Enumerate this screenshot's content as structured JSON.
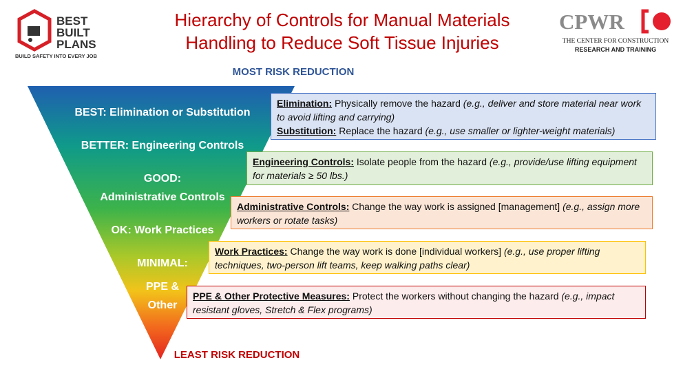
{
  "logo_left": {
    "lines": [
      "BEST",
      "BUILT",
      "PLANS"
    ],
    "tagline": "BUILD SAFETY INTO EVERY JOB"
  },
  "title": [
    "Hierarchy of Controls for Manual Materials",
    "Handling to Reduce Soft Tissue Injuries"
  ],
  "logo_right": {
    "name": "CPWR",
    "line1": "THE CENTER FOR CONSTRUCTION",
    "line2": "RESEARCH AND TRAINING"
  },
  "top_label": "MOST RISK REDUCTION",
  "bottom_label": "LEAST RISK REDUCTION",
  "triangle_labels": [
    "BEST: Elimination or Substitution",
    "BETTER: Engineering Controls",
    "GOOD:",
    "Administrative Controls",
    "OK: Work Practices",
    "MINIMAL:",
    "PPE &",
    "Other"
  ],
  "boxes": [
    [
      {
        "term": "Elimination:",
        "text": "Physically remove the hazard",
        "example": "(e.g., deliver and store material near work to avoid lifting and carrying)"
      },
      {
        "term": "Substitution:",
        "text": "Replace the hazard",
        "example": "(e.g., use smaller or lighter-weight materials)"
      }
    ],
    [
      {
        "term": "Engineering Controls:",
        "text": "Isolate people from the hazard",
        "example": "(e.g., provide/use lifting equipment for materials ≥ 50 lbs.)"
      }
    ],
    [
      {
        "term": "Administrative Controls:",
        "text": "Change the way work is assigned [management]",
        "example": "(e.g., assign more workers or rotate tasks)"
      }
    ],
    [
      {
        "term": "Work Practices:",
        "text": "Change the way work is done [individual workers]",
        "example": "(e.g., use proper lifting techniques, two-person lift teams, keep walking paths clear)"
      }
    ],
    [
      {
        "term": "PPE & Other Protective Measures:",
        "text": "Protect the workers without changing the hazard",
        "example": "(e.g., impact resistant gloves, Stretch & Flex programs)"
      }
    ]
  ]
}
